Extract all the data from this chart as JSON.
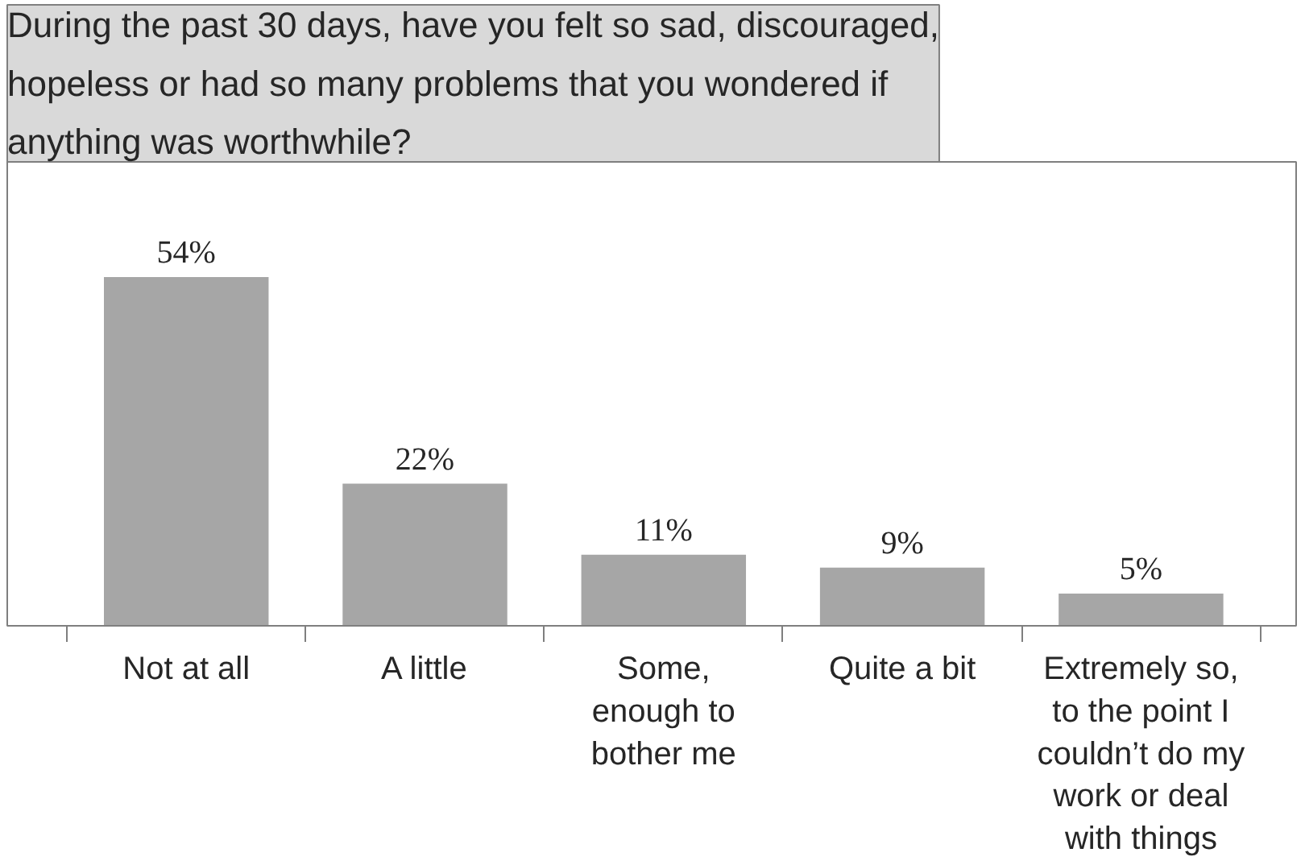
{
  "chart_data": {
    "type": "bar",
    "title": "During the past 30 days, have you felt so sad, discouraged,\nhopeless or had so many problems that you wondered if\nanything was worthwhile?",
    "categories": [
      "Not at all",
      "A little",
      "Some,\nenough to\nbother me",
      "Quite a bit",
      "Extremely so,\nto the point I\ncouldn’t do my\nwork or deal\nwith things"
    ],
    "values": [
      54,
      22,
      11,
      9,
      5
    ],
    "value_labels": [
      "54%",
      "22%",
      "11%",
      "9%",
      "5%"
    ],
    "color": "#a6a6a6",
    "grid": false
  }
}
